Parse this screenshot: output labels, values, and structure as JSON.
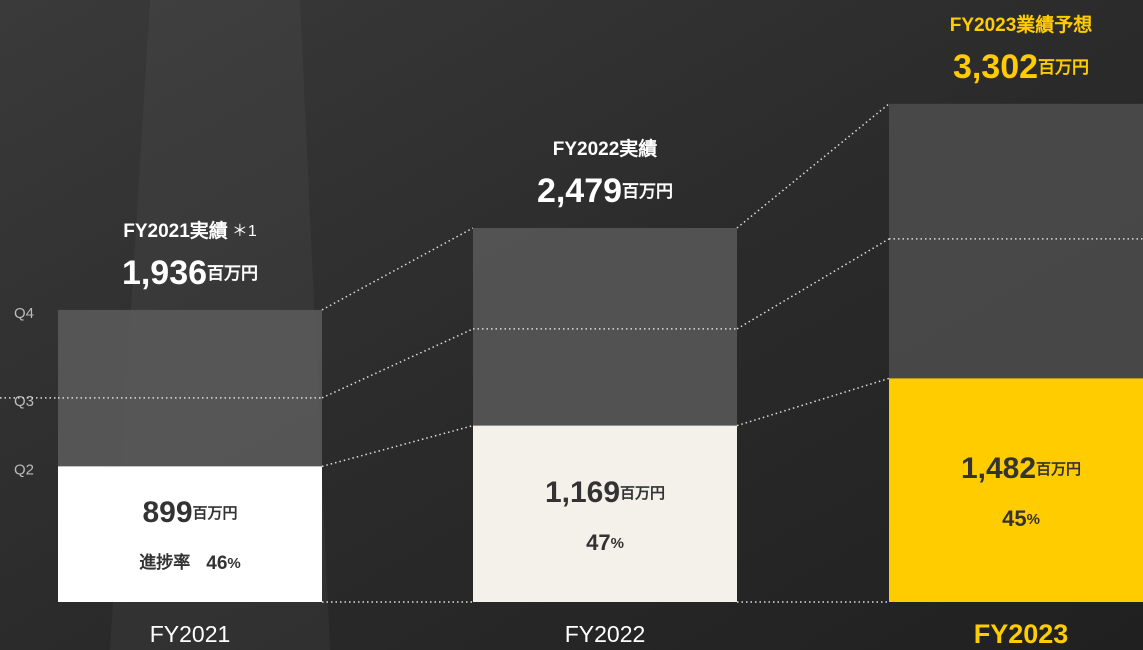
{
  "chart_data": {
    "type": "overlay-bar",
    "categories": [
      "FY2021",
      "FY2022",
      "FY2023"
    ],
    "headers": [
      "FY2021実績",
      "FY2022実績",
      "FY2023業績予想"
    ],
    "header_note": "＊1",
    "unit": "百万円",
    "totals": [
      1936,
      2479,
      3302
    ],
    "total_labels": [
      "1,936",
      "2,479",
      "3,302"
    ],
    "q3_cumulative": [
      1353,
      1810,
      2407
    ],
    "h1": [
      899,
      1169,
      1482
    ],
    "h1_labels": [
      "899",
      "1,169",
      "1,482"
    ],
    "progress_label": "進捗率",
    "progress": [
      46,
      47,
      45
    ],
    "progress_unit": "%",
    "quarter_labels": [
      "Q4",
      "Q3",
      "Q2"
    ],
    "ylim": [
      0,
      3990
    ],
    "total_colors": [
      "#5c5c5c",
      "#595959",
      "#4d4d4d"
    ],
    "h1_colors": [
      "#ffffff",
      "#f3f1ea",
      "#ffcc00"
    ],
    "header_colors": [
      "#ffffff",
      "#ffffff",
      "#ffcc00"
    ]
  }
}
